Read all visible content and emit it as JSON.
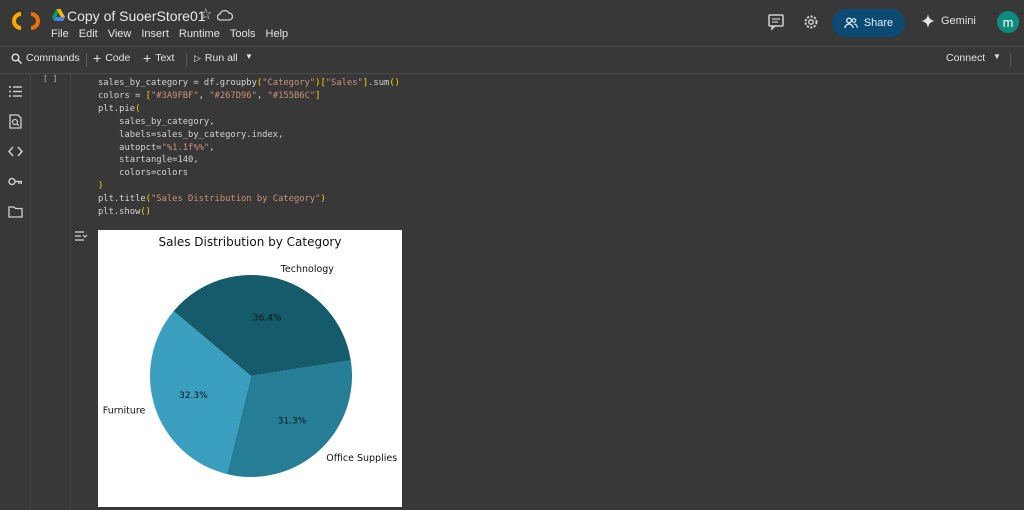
{
  "header": {
    "doc_title": "Copy of SuoerStore01",
    "menu": [
      "File",
      "Edit",
      "View",
      "Insert",
      "Runtime",
      "Tools",
      "Help"
    ],
    "share_label": "Share",
    "gemini_label": "Gemini",
    "avatar_letter": "m"
  },
  "toolbar": {
    "commands_label": "Commands",
    "code_label": "Code",
    "text_label": "Text",
    "run_all_label": "Run all",
    "connect_label": "Connect"
  },
  "cell": {
    "exec_count": "[ ]",
    "code_lines": [
      "sales_by_category = df.groupby(\"Category\")[\"Sales\"].sum()",
      "colors = [\"#3A9FBF\", \"#267D96\", \"#155B6C\"]",
      "plt.pie(",
      "    sales_by_category,",
      "    labels=sales_by_category.index,",
      "    autopct=\"%1.1f%%\",",
      "    startangle=140,",
      "    colors=colors",
      ")",
      "plt.title(\"Sales Distribution by Category\")",
      "plt.show()"
    ]
  },
  "chart_data": {
    "type": "pie",
    "title": "Sales Distribution by Category",
    "startangle": 140,
    "slices": [
      {
        "label": "Furniture",
        "pct": 32.3,
        "pct_label": "32.3%",
        "color": "#3A9FBF"
      },
      {
        "label": "Office Supplies",
        "pct": 31.3,
        "pct_label": "31.3%",
        "color": "#267D96"
      },
      {
        "label": "Technology",
        "pct": 36.4,
        "pct_label": "36.4%",
        "color": "#155B6C"
      }
    ]
  }
}
